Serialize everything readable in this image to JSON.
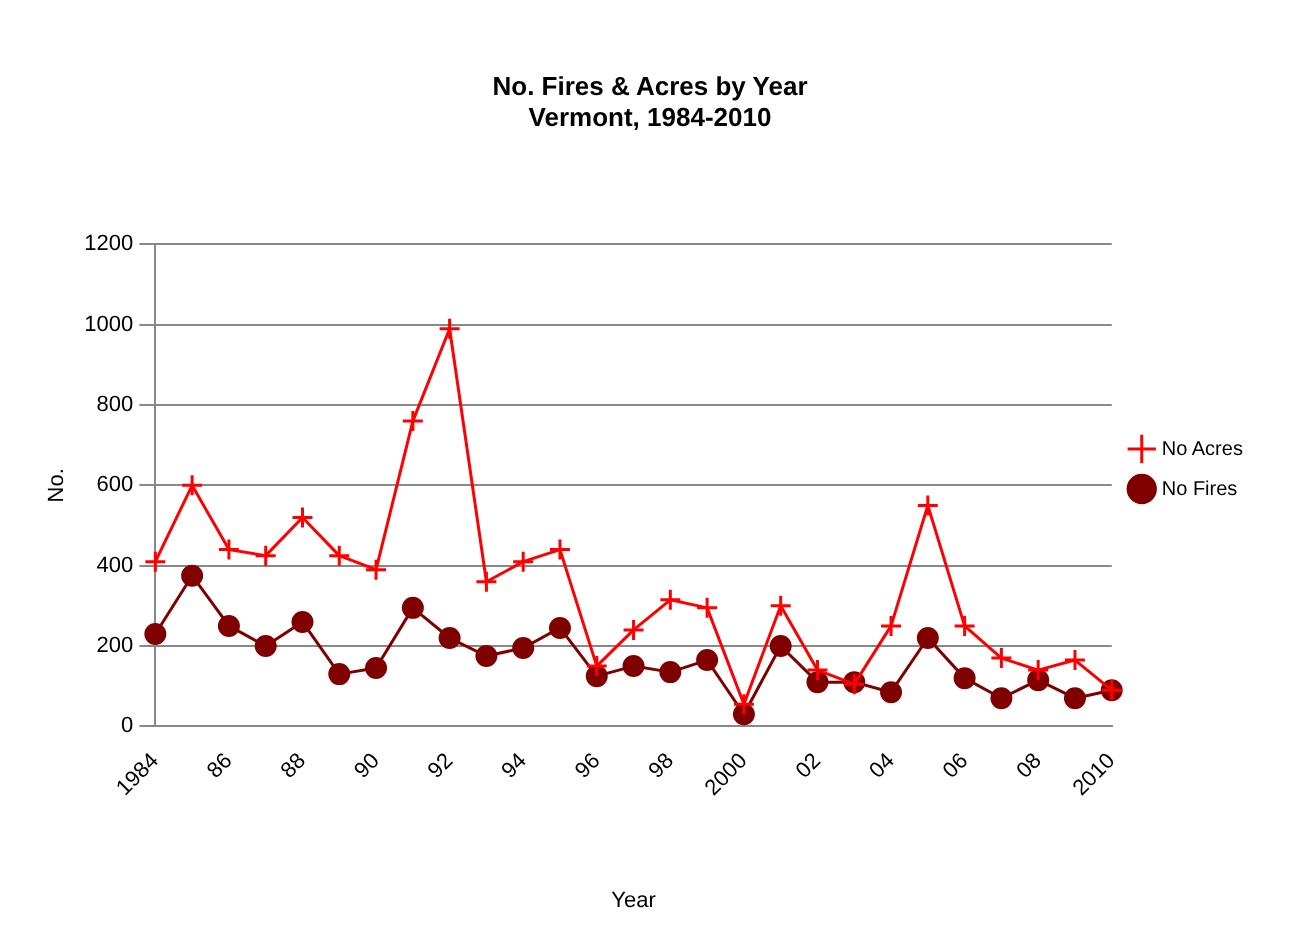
{
  "chart_data": {
    "type": "line",
    "title": "No. Fires & Acres by Year",
    "subtitle": "Vermont, 1984-2010",
    "xlabel": "Year",
    "ylabel": "No.",
    "categories": [
      "1984",
      null,
      "86",
      null,
      "88",
      null,
      "90",
      null,
      "92",
      null,
      "94",
      null,
      "96",
      null,
      "98",
      null,
      "2000",
      null,
      "02",
      null,
      "04",
      null,
      "06",
      null,
      "08",
      null,
      "2010"
    ],
    "series": [
      {
        "name": "No Fires",
        "color": "#800000",
        "marker": "circle",
        "values": [
          230,
          375,
          250,
          200,
          260,
          130,
          145,
          295,
          220,
          175,
          195,
          245,
          125,
          150,
          135,
          165,
          30,
          200,
          110,
          110,
          85,
          220,
          120,
          70,
          115,
          70,
          90
        ]
      },
      {
        "name": "No Acres",
        "color": "#ff0000",
        "marker": "cross",
        "values": [
          410,
          600,
          440,
          425,
          520,
          425,
          390,
          760,
          990,
          360,
          410,
          440,
          150,
          240,
          315,
          295,
          55,
          300,
          140,
          105,
          250,
          550,
          250,
          170,
          140,
          165,
          90
        ]
      }
    ],
    "ylim": [
      0,
      1200
    ],
    "yticks": [
      0,
      200,
      400,
      600,
      800,
      1000,
      1200
    ],
    "grid": "y",
    "legend": "right"
  }
}
